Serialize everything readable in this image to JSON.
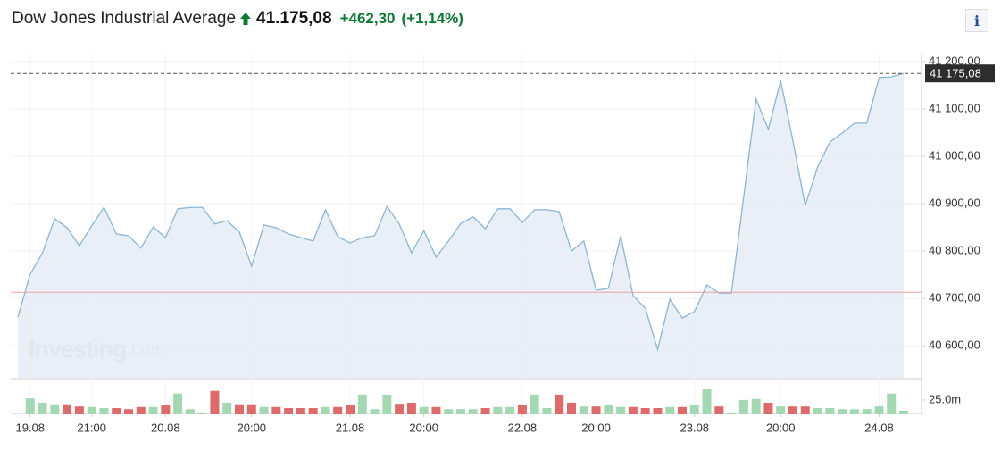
{
  "header": {
    "title": "Dow Jones Industrial Average",
    "price": "41.175,08",
    "change": "+462,30",
    "change_pct": "(+1,14%)",
    "info": "i"
  },
  "chart_data": {
    "type": "area",
    "categories": [
      null,
      "19.08",
      null,
      null,
      null,
      null,
      "21:00",
      null,
      null,
      null,
      null,
      null,
      "20.08",
      null,
      null,
      null,
      null,
      null,
      null,
      "20:00",
      null,
      null,
      null,
      null,
      null,
      null,
      null,
      "21.08",
      null,
      null,
      null,
      null,
      null,
      "20:00",
      null,
      null,
      null,
      null,
      null,
      null,
      null,
      "22.08",
      null,
      null,
      null,
      null,
      null,
      "20:00",
      null,
      null,
      null,
      null,
      null,
      null,
      null,
      "23.08",
      null,
      null,
      null,
      null,
      null,
      null,
      "20:00",
      null,
      null,
      null,
      null,
      null,
      null,
      null,
      "24.08",
      null,
      null
    ],
    "values": [
      40660,
      40751,
      40796,
      40868,
      40849,
      40811,
      40853,
      40892,
      40836,
      40832,
      40806,
      40851,
      40828,
      40889,
      40892,
      40892,
      40857,
      40864,
      40840,
      40768,
      40855,
      40849,
      40836,
      40828,
      40821,
      40887,
      40830,
      40817,
      40828,
      40832,
      40894,
      40857,
      40796,
      40843,
      40787,
      40821,
      40858,
      40872,
      40847,
      40889,
      40889,
      40860,
      40887,
      40887,
      40883,
      40800,
      40821,
      40717,
      40721,
      40832,
      40706,
      40679,
      40592,
      40698,
      40658,
      40672,
      40728,
      40711,
      40711,
      40915,
      41121,
      41057,
      41160,
      41032,
      40896,
      40977,
      41030,
      41049,
      41070,
      41070,
      41166,
      41168,
      41175.08
    ],
    "color": "#8ab6d6",
    "fill": "#e4ecf5",
    "ylim": [
      40532,
      41217
    ],
    "yticks": [
      {
        "value": 40600,
        "label": "40 600,00"
      },
      {
        "value": 40700,
        "label": "40 700,00"
      },
      {
        "value": 40800,
        "label": "40 800,00"
      },
      {
        "value": 40900,
        "label": "40 900,00"
      },
      {
        "value": 41000,
        "label": "41 000,00"
      },
      {
        "value": 41100,
        "label": "41 100,00"
      },
      {
        "value": 41200,
        "label": "41 200,00"
      }
    ],
    "grid": true,
    "last_price": {
      "value": 41175.08,
      "label": "41 175,08"
    },
    "reference_line": 40712.78,
    "reference_color": "#f0a0a0",
    "volume": {
      "values": [
        null,
        28,
        20,
        17,
        17,
        13,
        12,
        10,
        10,
        8,
        12,
        12,
        15,
        37,
        8,
        2,
        42,
        20,
        17,
        17,
        12,
        12,
        10,
        10,
        10,
        12,
        12,
        15,
        35,
        8,
        35,
        18,
        20,
        12,
        12,
        8,
        8,
        8,
        10,
        12,
        12,
        15,
        35,
        10,
        35,
        20,
        13,
        13,
        15,
        12,
        12,
        10,
        10,
        12,
        12,
        15,
        45,
        13,
        2,
        25,
        27,
        20,
        13,
        13,
        13,
        10,
        10,
        8,
        8,
        8,
        13,
        37,
        5
      ],
      "up_color": "#a3d9b1",
      "down_color": "#e06a6a",
      "ylim": [
        0,
        63
      ],
      "yticks": [
        {
          "value": 25,
          "label": "25.0m"
        }
      ]
    },
    "watermark": {
      "main": "Investing",
      "suffix": ".com"
    }
  }
}
